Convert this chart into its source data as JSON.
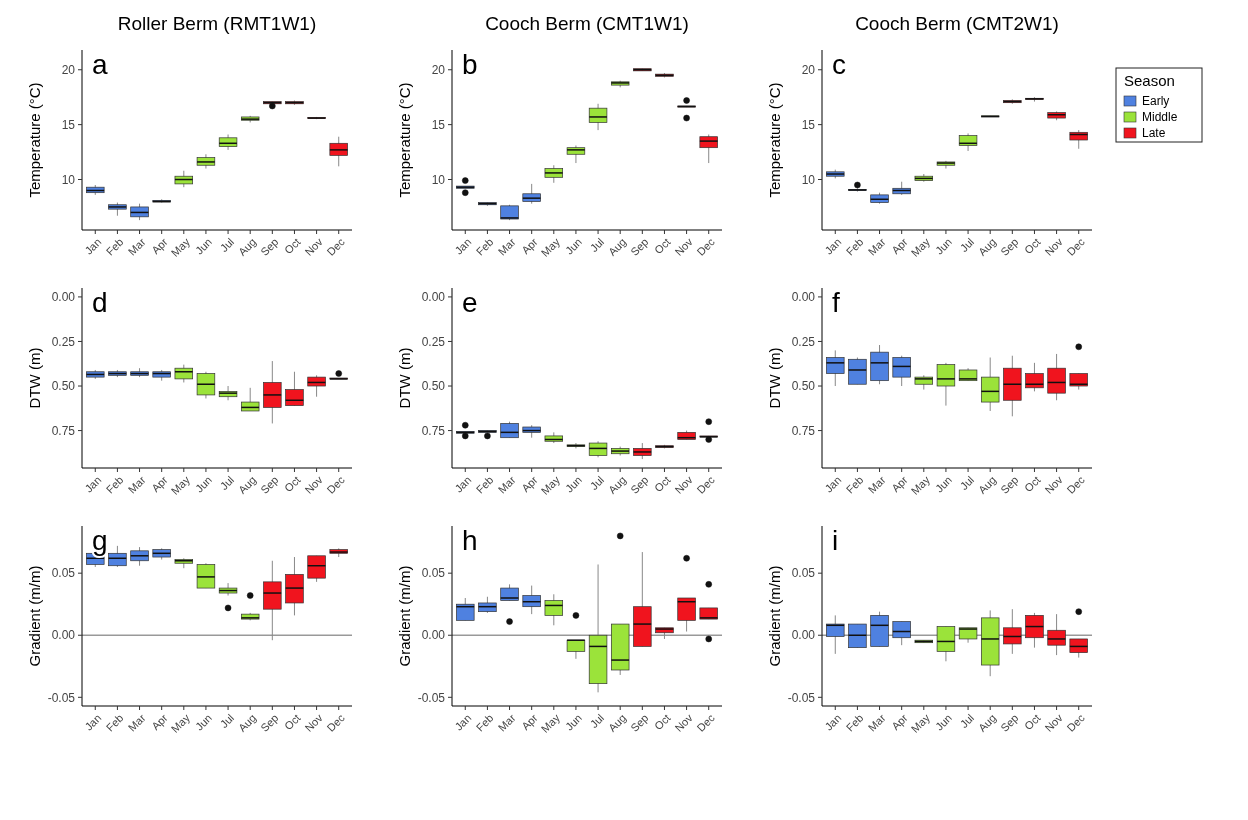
{
  "chart_data": [
    {
      "type": "box",
      "title": "Roller Berm (RMT1W1)",
      "ylabel": "Temperature (°C)",
      "annotations": [
        "a"
      ],
      "categories": [
        "Jan",
        "Feb",
        "Mar",
        "Apr",
        "May",
        "Jun",
        "Jul",
        "Aug",
        "Sep",
        "Oct",
        "Nov",
        "Dec"
      ],
      "ylim": [
        5.4,
        21.8
      ],
      "yticks": [
        10,
        15,
        20
      ],
      "legend": false,
      "series": [
        {
          "color": "#4f81e0",
          "boxes": [
            {
              "low": 8.6,
              "q1": 8.8,
              "median": 9.0,
              "q3": 9.3,
              "high": 9.5
            },
            {
              "low": 6.7,
              "q1": 7.3,
              "median": 7.5,
              "q3": 7.7,
              "high": 7.9
            },
            {
              "low": 6.3,
              "q1": 6.6,
              "median": 7.0,
              "q3": 7.5,
              "high": 7.8
            },
            {
              "low": 7.9,
              "q1": 7.95,
              "median": 8.0,
              "q3": 8.1,
              "high": 8.2
            },
            null,
            null,
            null,
            null,
            null,
            null,
            null,
            null
          ]
        },
        {
          "color": "#9be33a",
          "boxes": [
            null,
            null,
            null,
            null,
            {
              "low": 9.3,
              "q1": 9.6,
              "median": 10.0,
              "q3": 10.3,
              "high": 10.8
            },
            {
              "low": 11.0,
              "q1": 11.3,
              "median": 11.6,
              "q3": 12.0,
              "high": 12.3
            },
            {
              "low": 12.7,
              "q1": 13.0,
              "median": 13.3,
              "q3": 13.8,
              "high": 14.1
            },
            {
              "low": 15.2,
              "q1": 15.4,
              "median": 15.5,
              "q3": 15.7,
              "high": 15.8
            },
            null,
            null,
            null,
            null
          ]
        },
        {
          "color": "#f0141e",
          "boxes": [
            null,
            null,
            null,
            null,
            null,
            null,
            null,
            null,
            {
              "low": 16.8,
              "q1": 16.9,
              "median": 17.0,
              "q3": 17.1,
              "high": 17.1,
              "outliers": [
                16.7
              ]
            },
            {
              "low": 16.8,
              "q1": 16.9,
              "median": 17.0,
              "q3": 17.1,
              "high": 17.2
            },
            {
              "low": 15.5,
              "q1": 15.55,
              "median": 15.6,
              "q3": 15.65,
              "high": 15.7
            },
            {
              "low": 11.2,
              "q1": 12.2,
              "median": 12.7,
              "q3": 13.3,
              "high": 13.9
            }
          ]
        }
      ]
    },
    {
      "type": "box",
      "title": "Cooch Berm (CMT1W1)",
      "ylabel": "Temperature (°C)",
      "annotations": [
        "b"
      ],
      "categories": [
        "Jan",
        "Feb",
        "Mar",
        "Apr",
        "May",
        "Jun",
        "Jul",
        "Aug",
        "Sep",
        "Oct",
        "Nov",
        "Dec"
      ],
      "ylim": [
        5.4,
        21.8
      ],
      "yticks": [
        10,
        15,
        20
      ],
      "legend": false,
      "series": [
        {
          "color": "#4f81e0",
          "boxes": [
            {
              "low": 9.2,
              "q1": 9.2,
              "median": 9.3,
              "q3": 9.4,
              "high": 9.4,
              "outliers": [
                9.9,
                8.8
              ]
            },
            {
              "low": 7.6,
              "q1": 7.7,
              "median": 7.8,
              "q3": 7.9,
              "high": 7.9
            },
            {
              "low": 6.3,
              "q1": 6.4,
              "median": 6.5,
              "q3": 7.6,
              "high": 7.7
            },
            {
              "low": 7.8,
              "q1": 8.0,
              "median": 8.3,
              "q3": 8.7,
              "high": 9.6
            },
            null,
            null,
            null,
            null,
            null,
            null,
            null,
            null
          ]
        },
        {
          "color": "#9be33a",
          "boxes": [
            null,
            null,
            null,
            null,
            {
              "low": 9.7,
              "q1": 10.2,
              "median": 10.6,
              "q3": 11.0,
              "high": 11.3
            },
            {
              "low": 11.5,
              "q1": 12.3,
              "median": 12.7,
              "q3": 12.9,
              "high": 13.1
            },
            {
              "low": 14.5,
              "q1": 15.2,
              "median": 15.7,
              "q3": 16.5,
              "high": 16.9
            },
            {
              "low": 18.4,
              "q1": 18.6,
              "median": 18.8,
              "q3": 18.9,
              "high": 19.0
            },
            null,
            null,
            null,
            null
          ]
        },
        {
          "color": "#f0141e",
          "boxes": [
            null,
            null,
            null,
            null,
            null,
            null,
            null,
            null,
            {
              "low": 19.9,
              "q1": 19.9,
              "median": 20.0,
              "q3": 20.1,
              "high": 20.1
            },
            {
              "low": 19.3,
              "q1": 19.4,
              "median": 19.5,
              "q3": 19.6,
              "high": 19.7
            },
            {
              "low": 16.6,
              "q1": 16.6,
              "median": 16.65,
              "q3": 16.7,
              "high": 16.7,
              "outliers": [
                17.2,
                15.6
              ]
            },
            {
              "low": 11.5,
              "q1": 12.9,
              "median": 13.5,
              "q3": 13.9,
              "high": 14.1
            }
          ]
        }
      ]
    },
    {
      "type": "box",
      "title": "Cooch Berm (CMT2W1)",
      "ylabel": "Temperature (°C)",
      "annotations": [
        "c"
      ],
      "categories": [
        "Jan",
        "Feb",
        "Mar",
        "Apr",
        "May",
        "Jun",
        "Jul",
        "Aug",
        "Sep",
        "Oct",
        "Nov",
        "Dec"
      ],
      "ylim": [
        5.4,
        21.8
      ],
      "yticks": [
        10,
        15,
        20
      ],
      "legend": "right",
      "legend_title": "Season",
      "series": [
        {
          "name": "Early",
          "color": "#4f81e0",
          "boxes": [
            {
              "low": 10.1,
              "q1": 10.3,
              "median": 10.5,
              "q3": 10.7,
              "high": 10.9
            },
            {
              "low": 8.9,
              "q1": 9.0,
              "median": 9.05,
              "q3": 9.1,
              "high": 9.2,
              "outliers": [
                9.5
              ]
            },
            {
              "low": 7.8,
              "q1": 7.9,
              "median": 8.2,
              "q3": 8.6,
              "high": 8.8
            },
            {
              "low": 8.6,
              "q1": 8.7,
              "median": 9.0,
              "q3": 9.2,
              "high": 9.8
            },
            null,
            null,
            null,
            null,
            null,
            null,
            null,
            null
          ]
        },
        {
          "name": "Middle",
          "color": "#9be33a",
          "boxes": [
            null,
            null,
            null,
            null,
            {
              "low": 9.8,
              "q1": 9.9,
              "median": 10.1,
              "q3": 10.3,
              "high": 10.5
            },
            {
              "low": 11.0,
              "q1": 11.3,
              "median": 11.5,
              "q3": 11.6,
              "high": 11.7
            },
            {
              "low": 12.6,
              "q1": 13.1,
              "median": 13.3,
              "q3": 14.0,
              "high": 14.2
            },
            {
              "low": 15.7,
              "q1": 15.7,
              "median": 15.75,
              "q3": 15.8,
              "high": 15.8
            },
            null,
            null,
            null,
            null
          ]
        },
        {
          "name": "Late",
          "color": "#f0141e",
          "boxes": [
            null,
            null,
            null,
            null,
            null,
            null,
            null,
            null,
            {
              "low": 16.9,
              "q1": 17.0,
              "median": 17.1,
              "q3": 17.2,
              "high": 17.3
            },
            {
              "low": 17.1,
              "q1": 17.3,
              "median": 17.35,
              "q3": 17.4,
              "high": 17.5
            },
            {
              "low": 15.4,
              "q1": 15.6,
              "median": 15.9,
              "q3": 16.1,
              "high": 16.2
            },
            {
              "low": 12.8,
              "q1": 13.6,
              "median": 14.1,
              "q3": 14.3,
              "high": 14.5
            }
          ]
        }
      ]
    },
    {
      "type": "box",
      "ylabel": "DTW (m)",
      "annotations": [
        "d"
      ],
      "categories": [
        "Jan",
        "Feb",
        "Mar",
        "Apr",
        "May",
        "Jun",
        "Jul",
        "Aug",
        "Sep",
        "Oct",
        "Nov",
        "Dec"
      ],
      "ylim": [
        0.96,
        -0.05
      ],
      "yticks": [
        {
          "value": 0,
          "label": "0.00"
        },
        0.25,
        {
          "value": 0.5,
          "label": "0.50"
        },
        0.75
      ],
      "legend": false,
      "series": [
        {
          "color": "#4f81e0",
          "boxes": [
            {
              "low": 0.41,
              "q1": 0.42,
              "median": 0.435,
              "q3": 0.45,
              "high": 0.46
            },
            {
              "low": 0.41,
              "q1": 0.42,
              "median": 0.43,
              "q3": 0.44,
              "high": 0.45
            },
            {
              "low": 0.4,
              "q1": 0.42,
              "median": 0.43,
              "q3": 0.44,
              "high": 0.45
            },
            {
              "low": 0.41,
              "q1": 0.42,
              "median": 0.43,
              "q3": 0.45,
              "high": 0.47
            },
            null,
            null,
            null,
            null,
            null,
            null,
            null,
            null
          ]
        },
        {
          "color": "#9be33a",
          "boxes": [
            null,
            null,
            null,
            null,
            {
              "low": 0.38,
              "q1": 0.4,
              "median": 0.42,
              "q3": 0.46,
              "high": 0.48
            },
            {
              "low": 0.42,
              "q1": 0.43,
              "median": 0.49,
              "q3": 0.55,
              "high": 0.57
            },
            {
              "low": 0.5,
              "q1": 0.53,
              "median": 0.54,
              "q3": 0.56,
              "high": 0.58
            },
            {
              "low": 0.51,
              "q1": 0.59,
              "median": 0.62,
              "q3": 0.64,
              "high": 0.64
            },
            null,
            null,
            null,
            null
          ]
        },
        {
          "color": "#f0141e",
          "boxes": [
            null,
            null,
            null,
            null,
            null,
            null,
            null,
            null,
            {
              "low": 0.36,
              "q1": 0.48,
              "median": 0.55,
              "q3": 0.62,
              "high": 0.71
            },
            {
              "low": 0.42,
              "q1": 0.52,
              "median": 0.58,
              "q3": 0.61,
              "high": 0.61
            },
            {
              "low": 0.44,
              "q1": 0.45,
              "median": 0.48,
              "q3": 0.5,
              "high": 0.56
            },
            {
              "low": 0.455,
              "q1": 0.455,
              "median": 0.46,
              "q3": 0.46,
              "high": 0.46,
              "outliers": [
                0.43
              ]
            }
          ]
        }
      ]
    },
    {
      "type": "box",
      "ylabel": "DTW (m)",
      "annotations": [
        "e"
      ],
      "categories": [
        "Jan",
        "Feb",
        "Mar",
        "Apr",
        "May",
        "Jun",
        "Jul",
        "Aug",
        "Sep",
        "Oct",
        "Nov",
        "Dec"
      ],
      "ylim": [
        0.96,
        -0.05
      ],
      "yticks": [
        {
          "value": 0,
          "label": "0.00"
        },
        0.25,
        {
          "value": 0.5,
          "label": "0.50"
        },
        0.75
      ],
      "legend": false,
      "series": [
        {
          "color": "#4f81e0",
          "boxes": [
            {
              "low": 0.755,
              "q1": 0.755,
              "median": 0.76,
              "q3": 0.765,
              "high": 0.765,
              "outliers": [
                0.72,
                0.78
              ]
            },
            {
              "low": 0.75,
              "q1": 0.75,
              "median": 0.755,
              "q3": 0.76,
              "high": 0.76,
              "outliers": [
                0.78
              ]
            },
            {
              "low": 0.7,
              "q1": 0.71,
              "median": 0.76,
              "q3": 0.79,
              "high": 0.79
            },
            {
              "low": 0.72,
              "q1": 0.73,
              "median": 0.75,
              "q3": 0.76,
              "high": 0.79
            },
            null,
            null,
            null,
            null,
            null,
            null,
            null,
            null
          ]
        },
        {
          "color": "#9be33a",
          "boxes": [
            null,
            null,
            null,
            null,
            {
              "low": 0.76,
              "q1": 0.78,
              "median": 0.8,
              "q3": 0.81,
              "high": 0.82
            },
            {
              "low": 0.82,
              "q1": 0.83,
              "median": 0.835,
              "q3": 0.84,
              "high": 0.85
            },
            {
              "low": 0.81,
              "q1": 0.82,
              "median": 0.85,
              "q3": 0.89,
              "high": 0.9
            },
            {
              "low": 0.84,
              "q1": 0.85,
              "median": 0.865,
              "q3": 0.88,
              "high": 0.89
            },
            null,
            null,
            null,
            null
          ]
        },
        {
          "color": "#f0141e",
          "boxes": [
            null,
            null,
            null,
            null,
            null,
            null,
            null,
            null,
            {
              "low": 0.82,
              "q1": 0.85,
              "median": 0.87,
              "q3": 0.89,
              "high": 0.91
            },
            {
              "low": 0.83,
              "q1": 0.835,
              "median": 0.84,
              "q3": 0.845,
              "high": 0.85
            },
            {
              "low": 0.75,
              "q1": 0.76,
              "median": 0.79,
              "q3": 0.8,
              "high": 0.8
            },
            {
              "low": 0.78,
              "q1": 0.78,
              "median": 0.785,
              "q3": 0.785,
              "high": 0.785,
              "outliers": [
                0.7,
                0.8
              ]
            }
          ]
        }
      ]
    },
    {
      "type": "box",
      "ylabel": "DTW (m)",
      "annotations": [
        "f"
      ],
      "categories": [
        "Jan",
        "Feb",
        "Mar",
        "Apr",
        "May",
        "Jun",
        "Jul",
        "Aug",
        "Sep",
        "Oct",
        "Nov",
        "Dec"
      ],
      "ylim": [
        0.96,
        -0.05
      ],
      "yticks": [
        {
          "value": 0,
          "label": "0.00"
        },
        0.25,
        {
          "value": 0.5,
          "label": "0.50"
        },
        0.75
      ],
      "legend": false,
      "series": [
        {
          "color": "#4f81e0",
          "boxes": [
            {
              "low": 0.3,
              "q1": 0.34,
              "median": 0.37,
              "q3": 0.43,
              "high": 0.5
            },
            {
              "low": 0.34,
              "q1": 0.35,
              "median": 0.41,
              "q3": 0.49,
              "high": 0.49
            },
            {
              "low": 0.27,
              "q1": 0.31,
              "median": 0.37,
              "q3": 0.47,
              "high": 0.49
            },
            {
              "low": 0.33,
              "q1": 0.34,
              "median": 0.39,
              "q3": 0.45,
              "high": 0.5
            },
            null,
            null,
            null,
            null,
            null,
            null,
            null,
            null
          ]
        },
        {
          "color": "#9be33a",
          "boxes": [
            null,
            null,
            null,
            null,
            {
              "low": 0.44,
              "q1": 0.45,
              "median": 0.46,
              "q3": 0.49,
              "high": 0.52
            },
            {
              "low": 0.37,
              "q1": 0.38,
              "median": 0.46,
              "q3": 0.5,
              "high": 0.61
            },
            {
              "low": 0.4,
              "q1": 0.41,
              "median": 0.46,
              "q3": 0.47,
              "high": 0.47
            },
            {
              "low": 0.34,
              "q1": 0.45,
              "median": 0.53,
              "q3": 0.59,
              "high": 0.64
            },
            null,
            null,
            null,
            null
          ]
        },
        {
          "color": "#f0141e",
          "boxes": [
            null,
            null,
            null,
            null,
            null,
            null,
            null,
            null,
            {
              "low": 0.33,
              "q1": 0.4,
              "median": 0.49,
              "q3": 0.58,
              "high": 0.67
            },
            {
              "low": 0.37,
              "q1": 0.43,
              "median": 0.49,
              "q3": 0.51,
              "high": 0.53
            },
            {
              "low": 0.32,
              "q1": 0.4,
              "median": 0.48,
              "q3": 0.54,
              "high": 0.58
            },
            {
              "low": 0.43,
              "q1": 0.43,
              "median": 0.49,
              "q3": 0.5,
              "high": 0.52,
              "outliers": [
                0.28
              ]
            }
          ]
        }
      ]
    },
    {
      "type": "box",
      "ylabel": "Gradient (m/m)",
      "annotations": [
        "g"
      ],
      "categories": [
        "Jan",
        "Feb",
        "Mar",
        "Apr",
        "May",
        "Jun",
        "Jul",
        "Aug",
        "Sep",
        "Oct",
        "Nov",
        "Dec"
      ],
      "ylim": [
        -0.057,
        0.088
      ],
      "yticks": [
        {
          "value": -0.05,
          "label": "-0.05"
        },
        {
          "value": 0,
          "label": "0.00"
        },
        0.05
      ],
      "ref_lines": [
        {
          "axis": "y",
          "value": 0,
          "color": "#999999"
        }
      ],
      "legend": false,
      "series": [
        {
          "color": "#4f81e0",
          "boxes": [
            {
              "low": 0.055,
              "q1": 0.057,
              "median": 0.062,
              "q3": 0.066,
              "high": 0.069
            },
            {
              "low": 0.055,
              "q1": 0.056,
              "median": 0.062,
              "q3": 0.066,
              "high": 0.072
            },
            {
              "low": 0.056,
              "q1": 0.06,
              "median": 0.064,
              "q3": 0.068,
              "high": 0.071
            },
            {
              "low": 0.061,
              "q1": 0.063,
              "median": 0.066,
              "q3": 0.069,
              "high": 0.07
            },
            null,
            null,
            null,
            null,
            null,
            null,
            null,
            null
          ]
        },
        {
          "color": "#9be33a",
          "boxes": [
            null,
            null,
            null,
            null,
            {
              "low": 0.054,
              "q1": 0.058,
              "median": 0.06,
              "q3": 0.061,
              "high": 0.062
            },
            {
              "low": 0.038,
              "q1": 0.038,
              "median": 0.047,
              "q3": 0.057,
              "high": 0.058
            },
            {
              "low": 0.032,
              "q1": 0.034,
              "median": 0.036,
              "q3": 0.038,
              "high": 0.042,
              "outliers": [
                0.022
              ]
            },
            {
              "low": 0.012,
              "q1": 0.013,
              "median": 0.014,
              "q3": 0.017,
              "high": 0.018,
              "outliers": [
                0.032
              ]
            },
            null,
            null,
            null,
            null
          ]
        },
        {
          "color": "#f0141e",
          "boxes": [
            null,
            null,
            null,
            null,
            null,
            null,
            null,
            null,
            {
              "low": -0.004,
              "q1": 0.021,
              "median": 0.034,
              "q3": 0.043,
              "high": 0.06
            },
            {
              "low": 0.016,
              "q1": 0.026,
              "median": 0.038,
              "q3": 0.049,
              "high": 0.063
            },
            {
              "low": 0.043,
              "q1": 0.046,
              "median": 0.056,
              "q3": 0.064,
              "high": 0.064
            },
            {
              "low": 0.063,
              "q1": 0.066,
              "median": 0.067,
              "q3": 0.069,
              "high": 0.07
            }
          ]
        }
      ]
    },
    {
      "type": "box",
      "ylabel": "Gradient (m/m)",
      "annotations": [
        "h"
      ],
      "categories": [
        "Jan",
        "Feb",
        "Mar",
        "Apr",
        "May",
        "Jun",
        "Jul",
        "Aug",
        "Sep",
        "Oct",
        "Nov",
        "Dec"
      ],
      "ylim": [
        -0.057,
        0.088
      ],
      "yticks": [
        {
          "value": -0.05,
          "label": "-0.05"
        },
        {
          "value": 0,
          "label": "0.00"
        },
        0.05
      ],
      "ref_lines": [
        {
          "axis": "y",
          "value": 0,
          "color": "#999999"
        }
      ],
      "legend": false,
      "series": [
        {
          "color": "#4f81e0",
          "boxes": [
            {
              "low": 0.012,
              "q1": 0.012,
              "median": 0.023,
              "q3": 0.025,
              "high": 0.03
            },
            {
              "low": 0.018,
              "q1": 0.019,
              "median": 0.023,
              "q3": 0.026,
              "high": 0.031
            },
            {
              "low": 0.028,
              "q1": 0.028,
              "median": 0.03,
              "q3": 0.038,
              "high": 0.041,
              "outliers": [
                0.011
              ]
            },
            {
              "low": 0.017,
              "q1": 0.023,
              "median": 0.027,
              "q3": 0.032,
              "high": 0.04
            },
            null,
            null,
            null,
            null,
            null,
            null,
            null,
            null
          ]
        },
        {
          "color": "#9be33a",
          "boxes": [
            null,
            null,
            null,
            null,
            {
              "low": 0.008,
              "q1": 0.016,
              "median": 0.024,
              "q3": 0.028,
              "high": 0.033
            },
            {
              "low": -0.019,
              "q1": -0.013,
              "median": -0.004,
              "q3": -0.004,
              "high": -0.004,
              "outliers": [
                0.016
              ]
            },
            {
              "low": -0.046,
              "q1": -0.039,
              "median": -0.009,
              "q3": 0,
              "high": 0.057
            },
            {
              "low": -0.032,
              "q1": -0.028,
              "median": -0.02,
              "q3": 0.009,
              "high": 0.009,
              "outliers": [
                0.08
              ]
            },
            null,
            null,
            null,
            null
          ]
        },
        {
          "color": "#f0141e",
          "boxes": [
            null,
            null,
            null,
            null,
            null,
            null,
            null,
            null,
            {
              "low": -0.009,
              "q1": -0.009,
              "median": 0.009,
              "q3": 0.023,
              "high": 0.067
            },
            {
              "low": -0.003,
              "q1": 0.002,
              "median": 0.005,
              "q3": 0.006,
              "high": 0.006
            },
            {
              "low": 0.003,
              "q1": 0.012,
              "median": 0.027,
              "q3": 0.03,
              "high": 0.03,
              "outliers": [
                0.062
              ]
            },
            {
              "low": 0.013,
              "q1": 0.013,
              "median": 0.014,
              "q3": 0.022,
              "high": 0.022,
              "outliers": [
                0.041,
                -0.003
              ]
            }
          ]
        }
      ]
    },
    {
      "type": "box",
      "ylabel": "Gradient (m/m)",
      "annotations": [
        "i"
      ],
      "categories": [
        "Jan",
        "Feb",
        "Mar",
        "Apr",
        "May",
        "Jun",
        "Jul",
        "Aug",
        "Sep",
        "Oct",
        "Nov",
        "Dec"
      ],
      "ylim": [
        -0.057,
        0.088
      ],
      "yticks": [
        {
          "value": -0.05,
          "label": "-0.05"
        },
        {
          "value": 0,
          "label": "0.00"
        },
        0.05
      ],
      "ref_lines": [
        {
          "axis": "y",
          "value": 0,
          "color": "#999999"
        }
      ],
      "legend": false,
      "series": [
        {
          "color": "#4f81e0",
          "boxes": [
            {
              "low": -0.015,
              "q1": -0.001,
              "median": 0.008,
              "q3": 0.009,
              "high": 0.016
            },
            {
              "low": -0.01,
              "q1": -0.01,
              "median": 0,
              "q3": 0.009,
              "high": 0.009
            },
            {
              "low": -0.009,
              "q1": -0.009,
              "median": 0.008,
              "q3": 0.016,
              "high": 0.019
            },
            {
              "low": -0.008,
              "q1": -0.002,
              "median": 0.003,
              "q3": 0.011,
              "high": 0.011
            },
            null,
            null,
            null,
            null,
            null,
            null,
            null,
            null
          ]
        },
        {
          "color": "#9be33a",
          "boxes": [
            null,
            null,
            null,
            null,
            {
              "low": -0.006,
              "q1": -0.006,
              "median": -0.005,
              "q3": -0.004,
              "high": -0.004
            },
            {
              "low": -0.021,
              "q1": -0.013,
              "median": -0.005,
              "q3": 0.007,
              "high": 0.007
            },
            {
              "low": -0.006,
              "q1": -0.003,
              "median": 0.005,
              "q3": 0.006,
              "high": 0.006
            },
            {
              "low": -0.033,
              "q1": -0.024,
              "median": -0.003,
              "q3": 0.014,
              "high": 0.02
            },
            null,
            null,
            null,
            null
          ]
        },
        {
          "color": "#f0141e",
          "boxes": [
            null,
            null,
            null,
            null,
            null,
            null,
            null,
            null,
            {
              "low": -0.015,
              "q1": -0.007,
              "median": -0.001,
              "q3": 0.006,
              "high": 0.021
            },
            {
              "low": -0.01,
              "q1": -0.002,
              "median": 0.007,
              "q3": 0.016,
              "high": 0.018
            },
            {
              "low": -0.016,
              "q1": -0.008,
              "median": -0.003,
              "q3": 0.004,
              "high": 0.017
            },
            {
              "low": -0.018,
              "q1": -0.014,
              "median": -0.009,
              "q3": -0.003,
              "high": -0.003,
              "outliers": [
                0.019
              ]
            }
          ]
        }
      ]
    }
  ]
}
